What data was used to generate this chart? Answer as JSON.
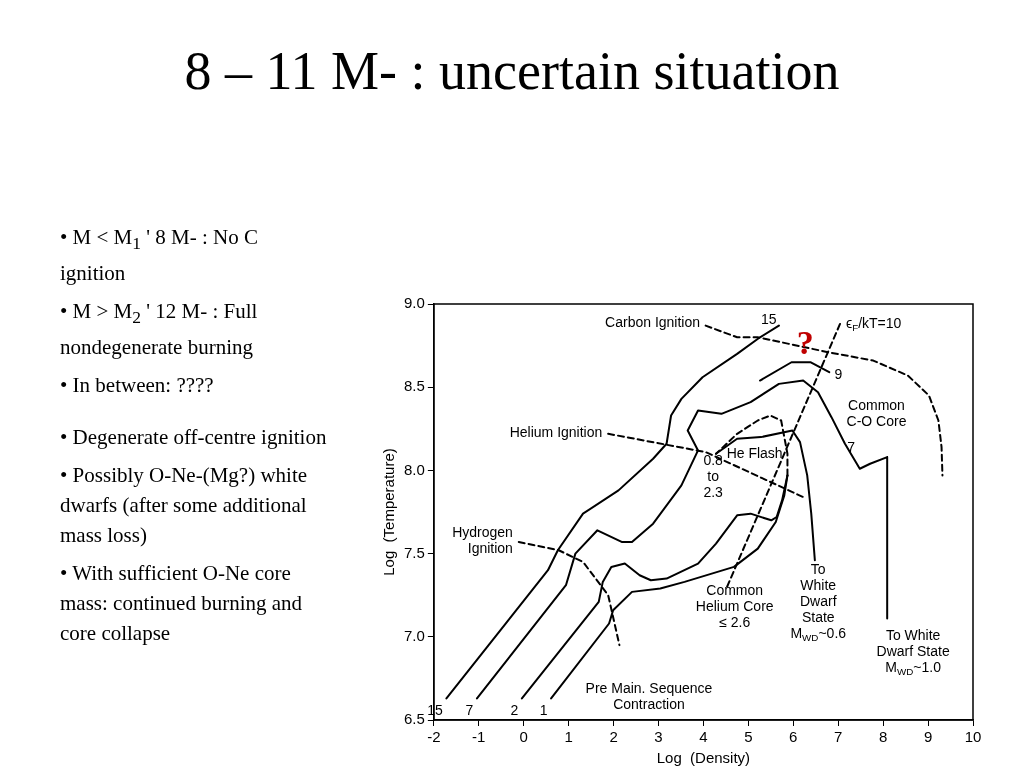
{
  "chart_data": {
    "type": "line",
    "title": "8 – 11 M- : uncertain situation",
    "xlabel": "Log  (Density)",
    "ylabel": "Log  (Temperature)",
    "xlim": [
      -2,
      10
    ],
    "xticks": [
      -2,
      -1,
      0,
      1,
      2,
      3,
      4,
      5,
      6,
      7,
      8,
      9,
      10
    ],
    "ylim": [
      6.5,
      9.0
    ],
    "yticks": [
      {
        "value": 6.5,
        "label": "6.5"
      },
      {
        "value": 7,
        "label": "7.0"
      },
      {
        "value": 7.5,
        "label": "7.5"
      },
      {
        "value": 8,
        "label": "8.0"
      },
      {
        "value": 8.5,
        "label": "8.5"
      },
      {
        "value": 9,
        "label": "9.0"
      }
    ],
    "grid": false,
    "legend": false,
    "series": [
      {
        "name": "15",
        "color": "#000000",
        "x": [
          -1.72,
          0.54,
          0.76,
          1.32,
          2.11,
          2.88,
          3.18,
          3.28,
          3.51,
          3.98,
          4.75,
          5.26,
          5.68
        ],
        "values": [
          6.63,
          7.4,
          7.52,
          7.74,
          7.88,
          8.07,
          8.16,
          8.33,
          8.43,
          8.56,
          8.7,
          8.8,
          8.87
        ]
      },
      {
        "name": "7",
        "color": "#000000",
        "x": [
          -1.04,
          0.94,
          1.15,
          1.64,
          2.18,
          2.41,
          2.88,
          3.51,
          3.88,
          3.65,
          3.88,
          4.4,
          5.05,
          5.68,
          6.22,
          6.55,
          6.85,
          7.15,
          7.48,
          7.71,
          8.09,
          8.09
        ],
        "values": [
          6.63,
          7.31,
          7.5,
          7.64,
          7.57,
          7.57,
          7.68,
          7.91,
          8.12,
          8.24,
          8.36,
          8.34,
          8.41,
          8.52,
          8.54,
          8.47,
          8.32,
          8.16,
          8.01,
          8.04,
          8.08,
          7.11
        ]
      },
      {
        "name": "9",
        "color": "#000000",
        "x": [
          6.8,
          6.38,
          5.96,
          5.26
        ],
        "values": [
          8.59,
          8.65,
          8.65,
          8.54
        ]
      },
      {
        "name": "2",
        "color": "#000000",
        "x": [
          -0.04,
          1.67,
          1.76,
          1.95,
          2.25,
          2.58,
          2.83,
          3.18,
          3.88,
          4.28,
          4.75,
          5.05,
          5.51,
          5.63,
          5.75,
          5.87
        ],
        "values": [
          6.63,
          7.21,
          7.33,
          7.42,
          7.44,
          7.37,
          7.34,
          7.35,
          7.44,
          7.56,
          7.73,
          7.74,
          7.7,
          7.72,
          7.82,
          7.97
        ]
      },
      {
        "name": "1",
        "color": "#000000",
        "x": [
          0.61,
          1.9,
          1.99,
          2.41,
          3.04,
          3.58,
          4.68,
          5.21,
          5.61,
          5.8,
          5.87
        ],
        "values": [
          6.63,
          7.08,
          7.16,
          7.27,
          7.29,
          7.33,
          7.42,
          7.53,
          7.69,
          7.85,
          7.97
        ]
      },
      {
        "color": "#000000",
        "x": [
          4.28,
          4.75,
          5.28,
          5.98,
          6.15,
          6.31,
          6.4,
          6.48
        ],
        "values": [
          8.1,
          8.19,
          8.2,
          8.24,
          8.17,
          7.97,
          7.74,
          7.46
        ]
      },
      {
        "color": "#000000",
        "line_style": "dashed",
        "x": [
          5.87,
          5.87,
          5.73,
          5.49,
          5.21,
          4.75,
          4.28
        ],
        "values": [
          7.97,
          8.1,
          8.3,
          8.33,
          8.3,
          8.22,
          8.1
        ]
      },
      {
        "name": "Carbon Ignition",
        "color": "#000000",
        "line_style": "dashed",
        "x": [
          4.05,
          4.75,
          5.21,
          6.78,
          7.78,
          8.55,
          9.02,
          9.23,
          9.3,
          9.32
        ],
        "values": [
          8.87,
          8.8,
          8.8,
          8.71,
          8.66,
          8.57,
          8.45,
          8.3,
          8.14,
          7.97
        ]
      },
      {
        "name": "ϵ$_{F}$/kT=10",
        "color": "#000000",
        "line_style": "dashed",
        "x": [
          7.04,
          4.51
        ],
        "values": [
          8.88,
          7.29
        ]
      },
      {
        "name": "Helium Ignition",
        "color": "#000000",
        "line_style": "dashed",
        "x": [
          1.88,
          4.05,
          6.22
        ],
        "values": [
          8.22,
          8.11,
          7.84
        ]
      },
      {
        "name": "Hydrogen Ignition",
        "color": "#000000",
        "line_style": "dashed",
        "x": [
          -0.11,
          0.78,
          1.32,
          1.88,
          2.13
        ],
        "values": [
          7.57,
          7.52,
          7.45,
          7.25,
          6.95
        ]
      }
    ],
    "annotations": [
      "• M < M$_{1}$ ' 8 M- : No C ignition",
      "• M > M$_{2}$ ' 12 M- : Full nondegenerate burning",
      "• In between: ????",
      "• Degenerate off-centre ignition",
      "• Possibly O-Ne-(Mg?) white dwarfs (after some additional mass loss)",
      "• With sufficient O-Ne core mass: continued burning and core collapse",
      "He Flash",
      "0.8\nto\n2.3",
      "Common\nC-O Core",
      "?",
      "To\nWhite\nDwarf\nState\nM$_{WD}$~0.6",
      "To White\nDwarf State\nM$_{WD}$~1.0",
      "Common\nHelium Core\n≤ 2.6",
      "Pre Main. Sequence\nContraction",
      "15",
      "7"
    ]
  }
}
